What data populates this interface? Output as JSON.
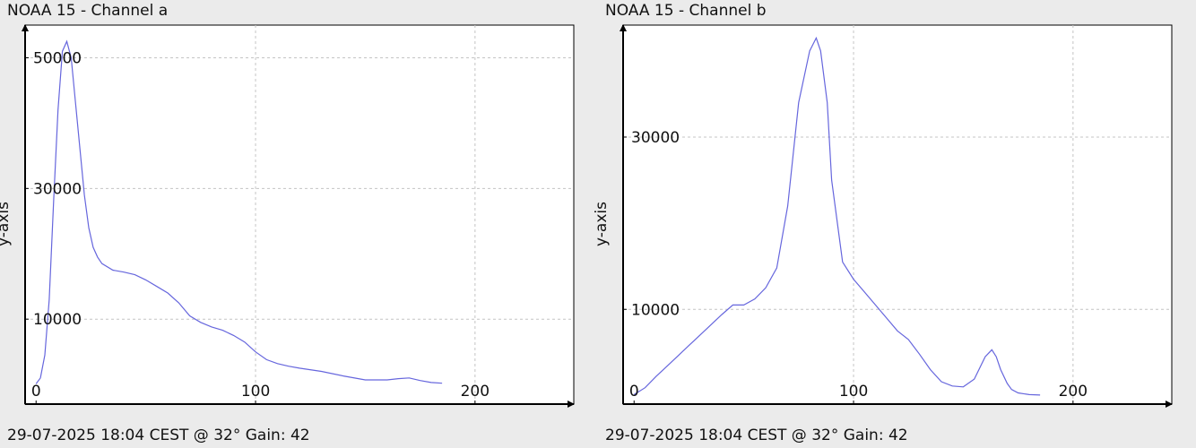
{
  "chart_data": [
    {
      "type": "line",
      "title": "NOAA 15 - Channel a",
      "ylabel": "y-axis",
      "xlabel": "",
      "footer": "29-07-2025 18:04 CEST @ 32° Gain: 42",
      "xlim": [
        -5,
        245
      ],
      "ylim": [
        -3000,
        55000
      ],
      "x_ticks": [
        0,
        100,
        200
      ],
      "y_ticks": [
        10000,
        30000,
        50000
      ],
      "grid": true,
      "line_color": "#6666dd",
      "x": [
        0,
        2,
        4,
        6,
        8,
        10,
        12,
        14,
        16,
        18,
        20,
        22,
        24,
        26,
        28,
        30,
        35,
        40,
        45,
        50,
        55,
        60,
        65,
        70,
        75,
        80,
        85,
        90,
        95,
        100,
        105,
        110,
        115,
        120,
        130,
        140,
        150,
        160,
        165,
        170,
        175,
        180,
        185
      ],
      "y": [
        100,
        1000,
        4500,
        13000,
        28000,
        42000,
        51000,
        52500,
        50000,
        43000,
        36000,
        29000,
        24000,
        21000,
        19500,
        18500,
        17500,
        17200,
        16800,
        16000,
        15000,
        14000,
        12500,
        10500,
        9500,
        8800,
        8300,
        7500,
        6500,
        5000,
        3800,
        3200,
        2800,
        2500,
        2000,
        1300,
        700,
        700,
        900,
        1000,
        600,
        300,
        200
      ]
    },
    {
      "type": "line",
      "title": "NOAA 15 - Channel b",
      "ylabel": "y-axis",
      "xlabel": "",
      "footer": "29-07-2025 18:04 CEST @ 32° Gain: 42",
      "xlim": [
        -5,
        245
      ],
      "ylim": [
        -1000,
        43000
      ],
      "x_ticks": [
        0,
        100,
        200
      ],
      "y_ticks": [
        10000,
        30000
      ],
      "grid": true,
      "line_color": "#6666dd",
      "x": [
        0,
        5,
        10,
        15,
        20,
        25,
        30,
        35,
        40,
        45,
        50,
        55,
        60,
        65,
        70,
        75,
        80,
        83,
        85,
        88,
        90,
        95,
        100,
        105,
        110,
        115,
        120,
        125,
        130,
        135,
        140,
        145,
        150,
        155,
        160,
        163,
        165,
        167,
        170,
        172,
        175,
        180,
        185
      ],
      "y": [
        100,
        900,
        2200,
        3400,
        4600,
        5800,
        7000,
        8200,
        9400,
        10500,
        10500,
        11200,
        12500,
        14800,
        22000,
        34000,
        40000,
        41500,
        40000,
        34000,
        25000,
        15500,
        13500,
        12000,
        10500,
        9000,
        7500,
        6500,
        4800,
        3000,
        1600,
        1100,
        1000,
        1900,
        4500,
        5300,
        4500,
        3000,
        1400,
        700,
        300,
        100,
        50
      ]
    }
  ]
}
